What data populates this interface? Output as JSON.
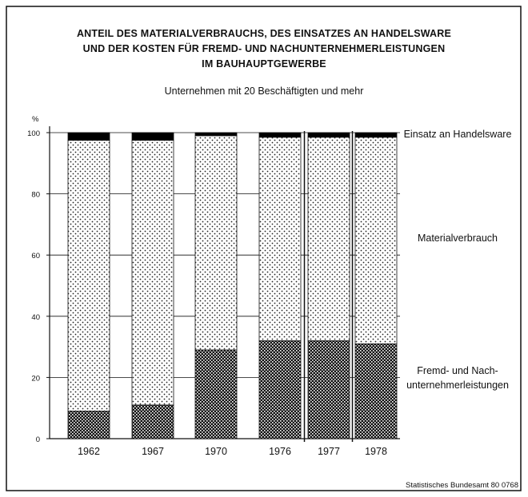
{
  "chart_data": {
    "type": "stacked-bar",
    "title": [
      "ANTEIL DES MATERIALVERBRAUCHS, DES EINSATZES AN HANDELSWARE",
      "UND DER KOSTEN FÜR FREMD- UND NACHUNTERNEHMERLEISTUNGEN",
      "IM BAUHAUPTGEWERBE"
    ],
    "subtitle": "Unternehmen mit 20 Beschäftigten und mehr",
    "y_label": "%",
    "source": "Statistisches Bundesamt 80 0768",
    "categories": [
      "1962",
      "1967",
      "1970",
      "1976",
      "1977",
      "1978"
    ],
    "series": [
      {
        "name": "Fremd- und Nach-\nunternehmerleistungen",
        "color": "#111111",
        "values": [
          9,
          11,
          29,
          32,
          32,
          31
        ]
      },
      {
        "name": "Materialverbrauch",
        "color": "#222222",
        "values": [
          88.5,
          86.5,
          70,
          66.5,
          66.5,
          67.5
        ]
      },
      {
        "name": "Einsatz an Handelsware",
        "color": "#000000",
        "values": [
          2.5,
          2.5,
          1,
          1.5,
          1.5,
          1.5
        ]
      }
    ],
    "ylim": [
      0,
      100
    ],
    "yticks": [
      0,
      20,
      40,
      60,
      80,
      100
    ],
    "grid": true
  }
}
